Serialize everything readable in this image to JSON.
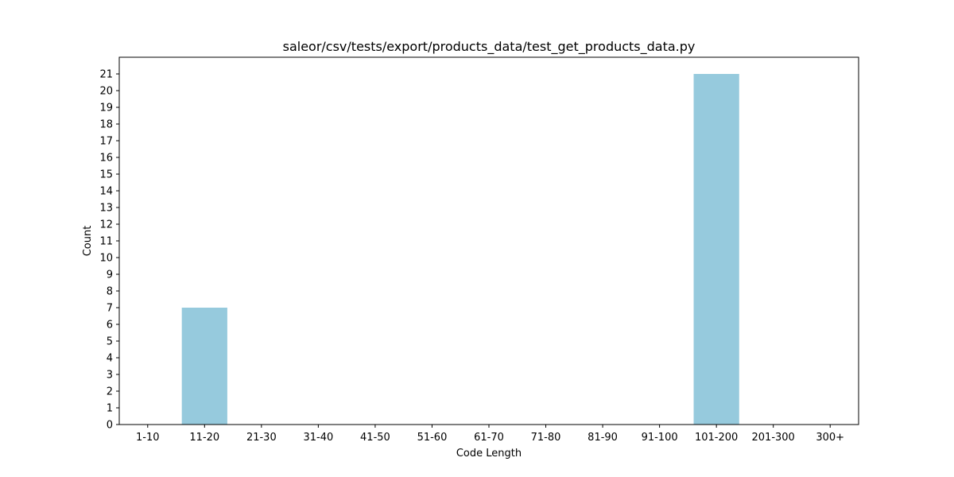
{
  "chart_data": {
    "type": "bar",
    "title": "saleor/csv/tests/export/products_data/test_get_products_data.py",
    "xlabel": "Code Length",
    "ylabel": "Count",
    "categories": [
      "1-10",
      "11-20",
      "21-30",
      "31-40",
      "41-50",
      "51-60",
      "61-70",
      "71-80",
      "81-90",
      "91-100",
      "101-200",
      "201-300",
      "300+"
    ],
    "values": [
      0,
      7,
      0,
      0,
      0,
      0,
      0,
      0,
      0,
      0,
      21,
      0,
      0
    ],
    "ylim": [
      0,
      22
    ],
    "yticks": [
      0,
      1,
      2,
      3,
      4,
      5,
      6,
      7,
      8,
      9,
      10,
      11,
      12,
      13,
      14,
      15,
      16,
      17,
      18,
      19,
      20,
      21
    ],
    "bar_color": "#96cadd",
    "grid": false,
    "legend": "none"
  }
}
